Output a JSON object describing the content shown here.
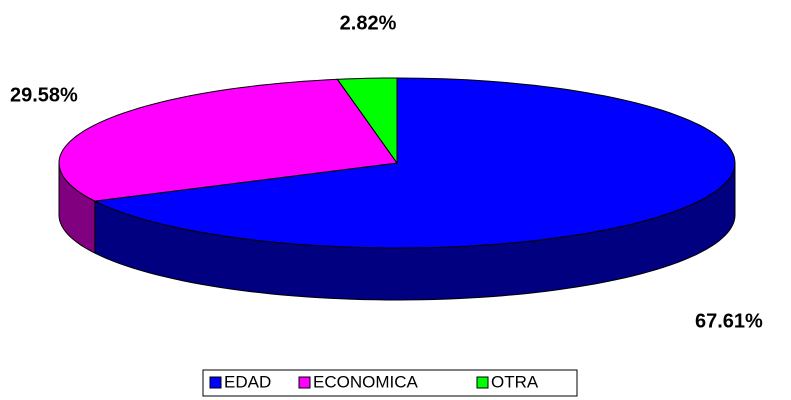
{
  "chart_data": {
    "type": "pie3d",
    "categories": [
      "EDAD",
      "ECONOMICA",
      "OTRA"
    ],
    "values": [
      67.61,
      29.58,
      2.82
    ],
    "value_labels": [
      "67.61%",
      "29.58%",
      "2.82%"
    ],
    "colors": [
      "#0000ff",
      "#ff00ff",
      "#00ff00"
    ],
    "side_colors": [
      "#000080",
      "#800080",
      "#008000"
    ],
    "legend": "bottom"
  }
}
